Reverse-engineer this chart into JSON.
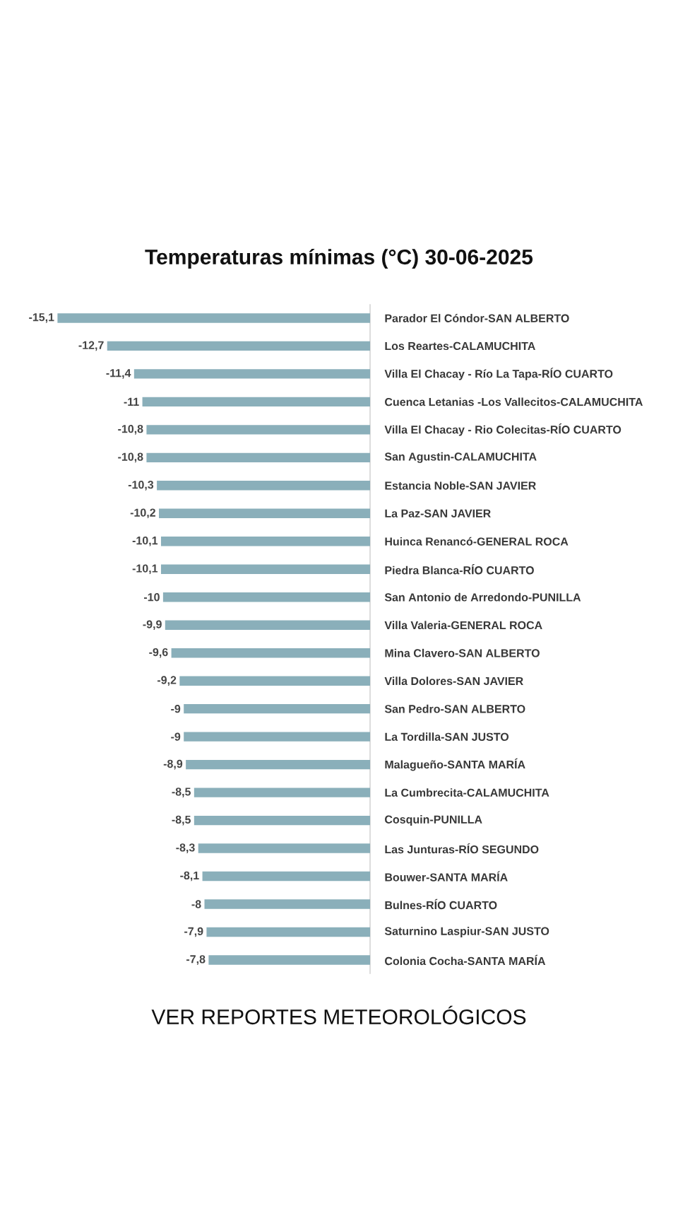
{
  "chart_data": {
    "type": "bar",
    "orientation": "horizontal",
    "title": "Temperaturas mínimas (°C) 30-06-2025",
    "categories": [
      "Parador El Cóndor-SAN ALBERTO",
      "Los Reartes-CALAMUCHITA",
      "Villa El Chacay - Río La Tapa-RÍO CUARTO",
      "Cuenca Letanias -Los Vallecitos-CALAMUCHITA",
      "Villa El Chacay - Rio Colecitas-RÍO CUARTO",
      "San Agustin-CALAMUCHITA",
      "Estancia Noble-SAN JAVIER",
      "La Paz-SAN JAVIER",
      "Huinca Renancó-GENERAL ROCA",
      "Piedra Blanca-RÍO CUARTO",
      "San Antonio de Arredondo-PUNILLA",
      "Villa Valeria-GENERAL ROCA",
      "Mina Clavero-SAN ALBERTO",
      "Villa Dolores-SAN JAVIER",
      "San Pedro-SAN ALBERTO",
      "La Tordilla-SAN JUSTO",
      "Malagueño-SANTA MARÍA",
      "La Cumbrecita-CALAMUCHITA",
      "Cosquin-PUNILLA",
      "Las Junturas-RÍO SEGUNDO",
      "Bouwer-SANTA MARÍA",
      "Bulnes-RÍO CUARTO",
      "Saturnino Laspiur-SAN JUSTO",
      "Colonia Cocha-SANTA MARÍA"
    ],
    "values": [
      -15.1,
      -12.7,
      -11.4,
      -11,
      -10.8,
      -10.8,
      -10.3,
      -10.2,
      -10.1,
      -10.1,
      -10,
      -9.9,
      -9.6,
      -9.2,
      -9,
      -9,
      -8.9,
      -8.5,
      -8.5,
      -8.3,
      -8.1,
      -8,
      -7.9,
      -7.8
    ],
    "value_labels": [
      "-15,1",
      "-12,7",
      "-11,4",
      "-11",
      "-10,8",
      "-10,8",
      "-10,3",
      "-10,2",
      "-10,1",
      "-10,1",
      "-10",
      "-9,9",
      "-9,6",
      "-9,2",
      "-9",
      "-9",
      "-8,9",
      "-8,5",
      "-8,5",
      "-8,3",
      "-8,1",
      "-8",
      "-7,9",
      "-7,8"
    ],
    "color": "#8aafba",
    "tick_labels": "y",
    "annotations": [
      "VER REPORTES METEOROLÓGICOS"
    ]
  }
}
